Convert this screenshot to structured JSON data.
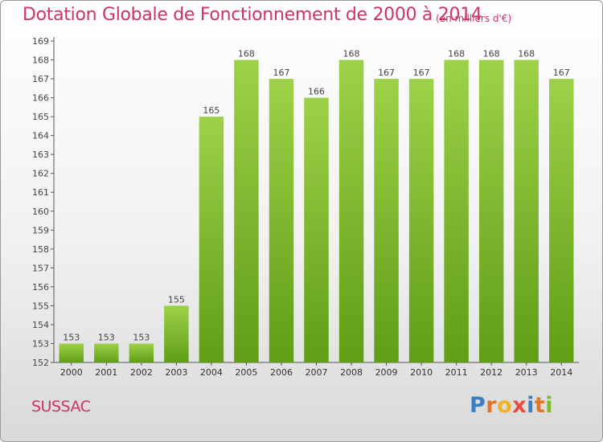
{
  "header": {
    "title": "Dotation Globale de Fonctionnement de 2000 à 2014",
    "unit": "(en milliers d'€)"
  },
  "footer": {
    "city": "SUSSAC",
    "logo_text": "Proxiti",
    "logo_colors": [
      "#3a7fc4",
      "#e0762a",
      "#f0b323",
      "#e84c3d",
      "#3a7fc4",
      "#e0762a",
      "#7dbb2f"
    ]
  },
  "colors": {
    "title": "#cc3366",
    "bar_light": "#9ed14a",
    "bar_dark": "#5f9e15",
    "axis": "#555555"
  },
  "chart_data": {
    "type": "bar",
    "categories": [
      "2000",
      "2001",
      "2002",
      "2003",
      "2004",
      "2005",
      "2006",
      "2007",
      "2008",
      "2009",
      "2010",
      "2011",
      "2012",
      "2013",
      "2014"
    ],
    "values": [
      153,
      153,
      153,
      155,
      165,
      168,
      167,
      166,
      168,
      167,
      167,
      168,
      168,
      168,
      167
    ],
    "ylim": [
      152,
      169
    ],
    "yticks": [
      152,
      153,
      154,
      155,
      156,
      157,
      158,
      159,
      160,
      161,
      162,
      163,
      164,
      165,
      166,
      167,
      168,
      169
    ],
    "grid": false,
    "legend": "none"
  }
}
